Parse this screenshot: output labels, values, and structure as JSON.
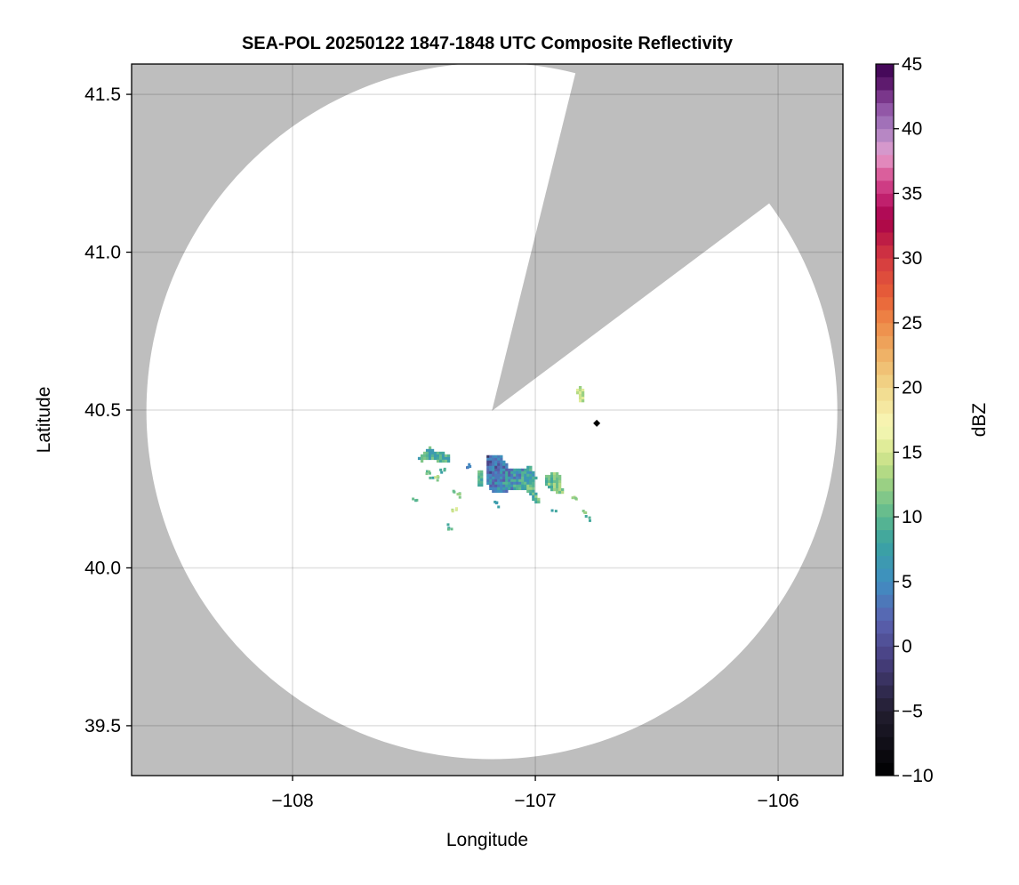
{
  "chart_data": {
    "type": "heatmap",
    "title": "SEA-POL 20250122 1847-1848 UTC Composite Reflectivity",
    "xlabel": "Longitude",
    "ylabel": "Latitude",
    "xlim": [
      -108.663,
      -105.733
    ],
    "ylim": [
      39.342,
      41.596
    ],
    "xticks": [
      -108,
      -107,
      -106
    ],
    "xtick_labels": [
      "−108",
      "−107",
      "−106"
    ],
    "yticks": [
      39.5,
      40.0,
      40.5,
      41.0,
      41.5
    ],
    "ytick_labels": [
      "39.5",
      "40.0",
      "40.5",
      "41.0",
      "41.5"
    ],
    "grid": true,
    "background_color": "#bebebe",
    "radar": {
      "lon": -107.179,
      "lat": 40.497,
      "range_lon_deg": 1.423,
      "range_lat_deg": 1.103,
      "blocked_azimuth_deg": [
        14,
        53.4
      ]
    },
    "marker": {
      "lon": -106.747,
      "lat": 40.458,
      "shape": "diamond",
      "color": "#000000"
    },
    "colorbar": {
      "label": "dBZ",
      "min": -10,
      "max": 45,
      "step": 1,
      "ticks": [
        -10,
        -5,
        0,
        5,
        10,
        15,
        20,
        25,
        30,
        35,
        40,
        45
      ],
      "tick_labels": [
        "−10",
        "−5",
        "0",
        "5",
        "10",
        "15",
        "20",
        "25",
        "30",
        "35",
        "40",
        "45"
      ],
      "colormap_stops": [
        [
          -10,
          "#000000"
        ],
        [
          -5,
          "#221e30"
        ],
        [
          -1,
          "#483f80"
        ],
        [
          2,
          "#5a62b0"
        ],
        [
          5,
          "#3f8ec2"
        ],
        [
          8,
          "#3aa3a0"
        ],
        [
          10,
          "#5cb88f"
        ],
        [
          13,
          "#a6d582"
        ],
        [
          15,
          "#d8e88f"
        ],
        [
          17,
          "#f8f8b8"
        ],
        [
          20,
          "#f1d88a"
        ],
        [
          23,
          "#eeaa60"
        ],
        [
          25,
          "#ee8a48"
        ],
        [
          27,
          "#e86038"
        ],
        [
          30,
          "#d43a40"
        ],
        [
          33,
          "#a8004a"
        ],
        [
          35,
          "#c82a78"
        ],
        [
          37,
          "#e070a8"
        ],
        [
          38,
          "#e4a0d0"
        ],
        [
          40,
          "#a87ec0"
        ],
        [
          42,
          "#8a4a9e"
        ],
        [
          43,
          "#6a2478"
        ],
        [
          45,
          "#3a0050"
        ]
      ]
    },
    "echoes": [
      {
        "name": "main",
        "mean_dbz": 7,
        "spread": 8,
        "polygon": [
          [
            -107.201,
            40.357
          ],
          [
            -107.143,
            40.357
          ],
          [
            -107.106,
            40.317
          ],
          [
            -107.044,
            40.317
          ],
          [
            -107.018,
            40.323
          ],
          [
            -106.996,
            40.289
          ],
          [
            -107.007,
            40.252
          ],
          [
            -106.982,
            40.21
          ],
          [
            -107.0,
            40.205
          ],
          [
            -107.033,
            40.244
          ],
          [
            -107.092,
            40.252
          ],
          [
            -107.128,
            40.238
          ],
          [
            -107.19,
            40.244
          ],
          [
            -107.201,
            40.289
          ]
        ]
      },
      {
        "name": "west",
        "mean_dbz": 9,
        "spread": 6,
        "polygon": [
          [
            -107.484,
            40.351
          ],
          [
            -107.44,
            40.385
          ],
          [
            -107.421,
            40.371
          ],
          [
            -107.374,
            40.365
          ],
          [
            -107.348,
            40.351
          ],
          [
            -107.348,
            40.337
          ],
          [
            -107.399,
            40.337
          ],
          [
            -107.436,
            40.342
          ],
          [
            -107.473,
            40.337
          ]
        ]
      },
      {
        "name": "east",
        "mean_dbz": 11,
        "spread": 6,
        "polygon": [
          [
            -106.96,
            40.295
          ],
          [
            -106.908,
            40.303
          ],
          [
            -106.89,
            40.286
          ],
          [
            -106.897,
            40.267
          ],
          [
            -106.879,
            40.244
          ],
          [
            -106.897,
            40.233
          ],
          [
            -106.934,
            40.244
          ],
          [
            -106.96,
            40.261
          ]
        ]
      },
      {
        "name": "north",
        "mean_dbz": 14,
        "spread": 4,
        "polygon": [
          [
            -106.832,
            40.57
          ],
          [
            -106.813,
            40.576
          ],
          [
            -106.795,
            40.553
          ],
          [
            -106.795,
            40.528
          ],
          [
            -106.817,
            40.528
          ]
        ]
      },
      {
        "name": "strip",
        "mean_dbz": 9,
        "spread": 5,
        "polygon": [
          [
            -107.238,
            40.309
          ],
          [
            -107.22,
            40.309
          ],
          [
            -107.22,
            40.261
          ],
          [
            -107.238,
            40.261
          ]
        ]
      }
    ],
    "specks": [
      [
        -107.502,
        40.224,
        11
      ],
      [
        -107.436,
        40.281,
        9
      ],
      [
        -107.41,
        40.286,
        13
      ],
      [
        -107.344,
        40.252,
        10
      ],
      [
        -107.319,
        40.233,
        12
      ],
      [
        -107.337,
        40.191,
        14
      ],
      [
        -107.355,
        40.134,
        9
      ],
      [
        -107.165,
        40.205,
        8
      ],
      [
        -106.927,
        40.188,
        8
      ],
      [
        -106.842,
        40.23,
        12
      ],
      [
        -106.799,
        40.177,
        13
      ],
      [
        -106.788,
        40.16,
        10
      ],
      [
        -107.385,
        40.309,
        8
      ],
      [
        -107.447,
        40.309,
        10
      ],
      [
        -107.282,
        40.328,
        4
      ]
    ]
  }
}
